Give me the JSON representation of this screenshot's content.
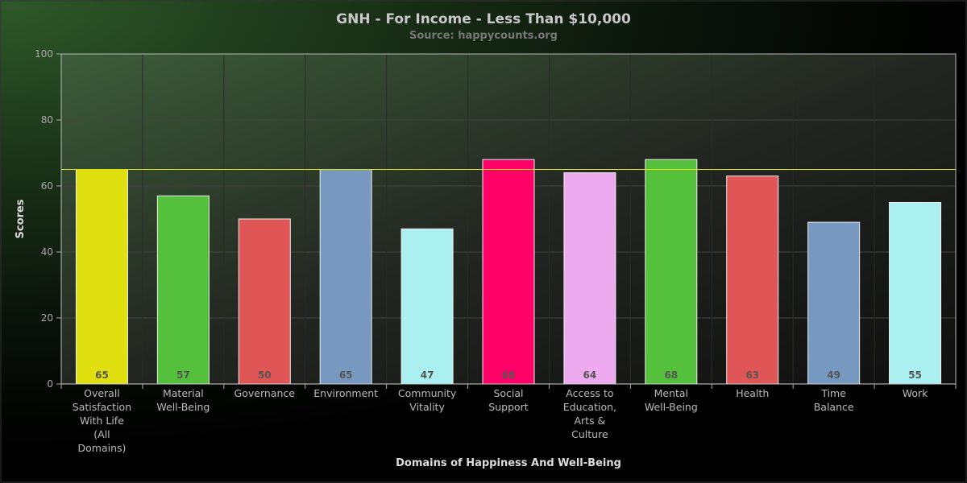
{
  "chart_data": {
    "type": "bar",
    "title": "GNH - For Income - Less Than $10,000",
    "subtitle": "Source: happycounts.org",
    "xlabel": "Domains of Happiness And Well-Being",
    "ylabel": "Scores",
    "ylim": [
      0,
      100
    ],
    "yticks": [
      0,
      20,
      40,
      60,
      80,
      100
    ],
    "grid": true,
    "categories": [
      "Overall Satisfaction With Life (All Domains)",
      "Material Well-Being",
      "Governance",
      "Environment",
      "Community Vitality",
      "Social Support",
      "Access to Education, Arts & Culture",
      "Mental Well-Being",
      "Health",
      "Time Balance",
      "Work"
    ],
    "category_lines": [
      [
        "Overall",
        "Satisfaction",
        "With Life",
        "(All",
        "Domains)"
      ],
      [
        "Material",
        "Well-Being"
      ],
      [
        "Governance"
      ],
      [
        "Environment"
      ],
      [
        "Community",
        "Vitality"
      ],
      [
        "Social",
        "Support"
      ],
      [
        "Access to",
        "Education,",
        "Arts &",
        "Culture"
      ],
      [
        "Mental",
        "Well-Being"
      ],
      [
        "Health"
      ],
      [
        "Time",
        "Balance"
      ],
      [
        "Work"
      ]
    ],
    "values": [
      65,
      57,
      50,
      65,
      47,
      68,
      64,
      68,
      63,
      49,
      55
    ],
    "data_labels": [
      "65",
      "57",
      "50",
      "65",
      "47",
      "68",
      "64",
      "68",
      "63",
      "49",
      "55"
    ],
    "colors": [
      "#e0e010",
      "#55c03c",
      "#e05555",
      "#7799c0",
      "#aaf0f0",
      "#ff0066",
      "#eeaaee",
      "#55c03c",
      "#e05555",
      "#7799c0",
      "#aaf0f0"
    ],
    "reference_line": {
      "value": 65,
      "color": "#e0e010"
    }
  }
}
